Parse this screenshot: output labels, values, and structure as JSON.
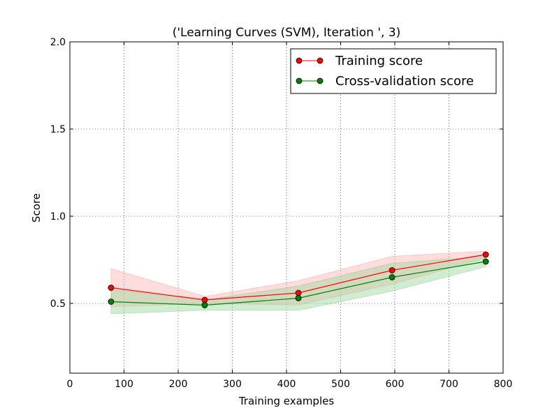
{
  "chart_data": {
    "type": "line",
    "title": "('Learning Curves (SVM), Iteration ', 3)",
    "xlabel": "Training examples",
    "ylabel": "Score",
    "xlim": [
      0,
      800
    ],
    "ylim": [
      0.1,
      2.0
    ],
    "xticks": [
      0,
      100,
      200,
      300,
      400,
      500,
      600,
      700,
      800
    ],
    "yticks": [
      0.5,
      1.0,
      1.5,
      2.0
    ],
    "xtick_labels": [
      "0",
      "100",
      "200",
      "300",
      "400",
      "500",
      "600",
      "700",
      "800"
    ],
    "ytick_labels": [
      "0.5",
      "1.0",
      "1.5",
      "2.0"
    ],
    "grid": true,
    "legend_position": "top-right",
    "x": [
      76,
      249,
      422,
      595,
      768
    ],
    "series": [
      {
        "name": "Training score",
        "color": "#ff0000",
        "fill_color": "#ffb3b3",
        "values": [
          0.59,
          0.52,
          0.56,
          0.69,
          0.78
        ],
        "upper": [
          0.7,
          0.54,
          0.63,
          0.77,
          0.8
        ],
        "lower": [
          0.48,
          0.5,
          0.49,
          0.61,
          0.76
        ]
      },
      {
        "name": "Cross-validation score",
        "color": "#008000",
        "fill_color": "#99d699",
        "values": [
          0.51,
          0.49,
          0.53,
          0.65,
          0.74
        ],
        "upper": [
          0.58,
          0.52,
          0.6,
          0.73,
          0.77
        ],
        "lower": [
          0.44,
          0.46,
          0.46,
          0.57,
          0.71
        ]
      }
    ]
  }
}
